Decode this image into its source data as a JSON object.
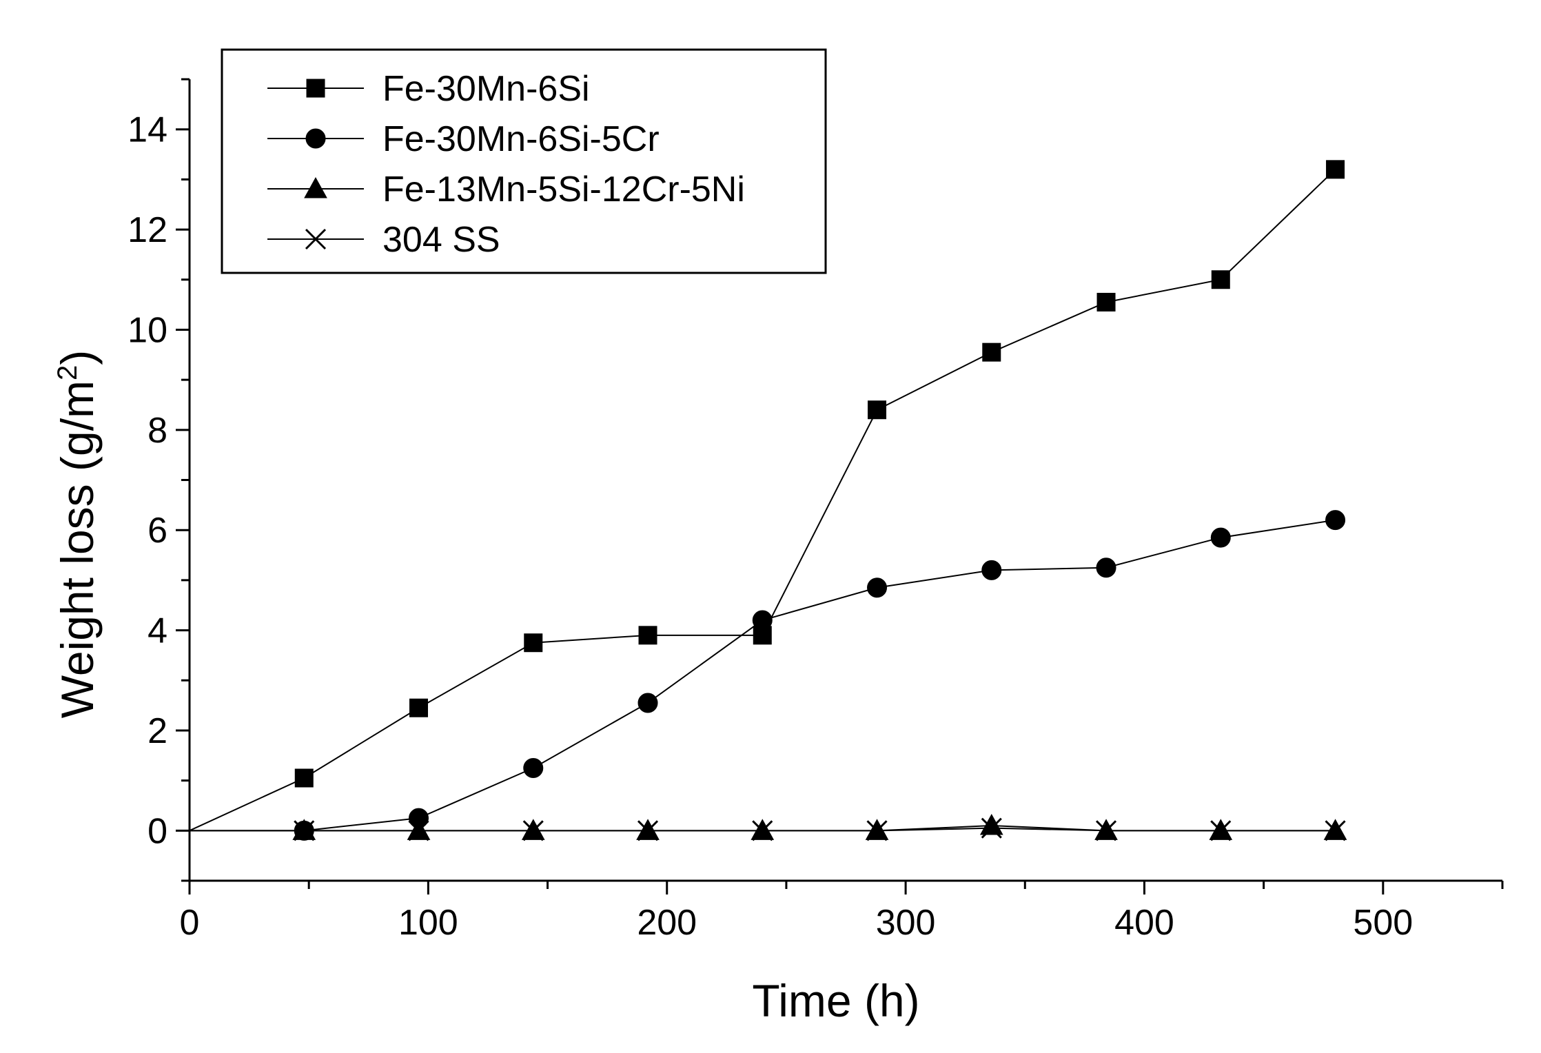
{
  "chart_data": {
    "type": "line",
    "title": "",
    "xlabel": "Time (h)",
    "ylabel": "Weight loss (g/m",
    "ylabel_sup": "2",
    "ylabel_close": ")",
    "xlim": [
      0,
      550
    ],
    "ylim": [
      -1,
      15
    ],
    "xticks": [
      0,
      100,
      200,
      300,
      400,
      500
    ],
    "xtick_labels": [
      "0",
      "100",
      "200",
      "300",
      "400",
      "500"
    ],
    "yticks": [
      0,
      2,
      4,
      6,
      8,
      10,
      12,
      14
    ],
    "ytick_labels": [
      "0",
      "2",
      "4",
      "6",
      "8",
      "10",
      "12",
      "14"
    ],
    "legend_position": "top-left",
    "grid": false,
    "series": [
      {
        "name": "Fe-30Mn-6Si",
        "marker": "square",
        "x": [
          0,
          48,
          96,
          144,
          192,
          240,
          288,
          336,
          384,
          432,
          480
        ],
        "y": [
          0,
          1.05,
          2.45,
          3.75,
          3.9,
          3.9,
          8.4,
          9.55,
          10.55,
          11.0,
          13.2
        ]
      },
      {
        "name": "Fe-30Mn-6Si-5Cr",
        "marker": "circle",
        "x": [
          0,
          48,
          96,
          144,
          192,
          240,
          288,
          336,
          384,
          432,
          480
        ],
        "y": [
          0,
          0.0,
          0.25,
          1.25,
          2.55,
          4.2,
          4.85,
          5.2,
          5.25,
          5.85,
          6.2
        ]
      },
      {
        "name": "Fe-13Mn-5Si-12Cr-5Ni",
        "marker": "triangle",
        "x": [
          0,
          48,
          96,
          144,
          192,
          240,
          288,
          336,
          384,
          432,
          480
        ],
        "y": [
          0,
          0.0,
          0.0,
          0.0,
          0.0,
          0.0,
          0.0,
          0.1,
          0.0,
          0.0,
          0.0
        ]
      },
      {
        "name": "304 SS",
        "marker": "x",
        "x": [
          0,
          48,
          96,
          144,
          192,
          240,
          288,
          336,
          384,
          432,
          480
        ],
        "y": [
          0,
          0.0,
          0.0,
          0.0,
          0.0,
          0.0,
          0.0,
          0.05,
          0.0,
          0.0,
          0.0
        ]
      }
    ]
  }
}
